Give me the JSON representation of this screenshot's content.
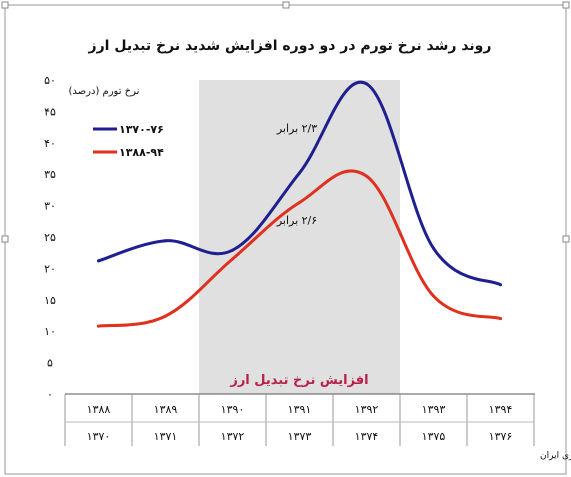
{
  "chart_data": {
    "type": "line",
    "title": "روند رشد نرخ تورم در دو دوره افزایش شدید نرخ تبدیل ارز",
    "ylabel": "نرخ تورم (درصد)",
    "xlabel": "",
    "ylim": [
      0,
      50
    ],
    "y_ticks": [
      "۰",
      "۵",
      "۱۰",
      "۱۵",
      "۲۰",
      "۲۵",
      "۳۰",
      "۳۵",
      "۴۰",
      "۴۵",
      "۵۰"
    ],
    "categories_top": [
      "۱۳۸۸",
      "۱۳۸۹",
      "۱۳۹۰",
      "۱۳۹۱",
      "۱۳۹۲",
      "۱۳۹۳",
      "۱۳۹۴"
    ],
    "categories_bottom": [
      "۱۳۷۰",
      "۱۳۷۱",
      "۱۳۷۲",
      "۱۳۷۳",
      "۱۳۷۴",
      "۱۳۷۵",
      "۱۳۷۶"
    ],
    "x": [
      0,
      1,
      2,
      3,
      4,
      5,
      6
    ],
    "series": [
      {
        "name": "۱۳۷۰-۷۶",
        "color": "#1f1f8f",
        "values": [
          21.2,
          24.4,
          22.9,
          35.2,
          49.4,
          23.2,
          17.4
        ]
      },
      {
        "name": "۱۳۸۸-۹۴",
        "color": "#e0301e",
        "values": [
          10.8,
          12.4,
          21.5,
          30.5,
          34.7,
          15.6,
          12.0
        ]
      }
    ],
    "shaded_region": {
      "from": 2,
      "to": 4,
      "label": "افزایش نرخ تبدیل ارز",
      "color": "#e0e0e0",
      "label_color": "#b8204a"
    },
    "annotations": [
      {
        "text": "۲/۳ برابر",
        "series": 0
      },
      {
        "text": "۲/۶ برابر",
        "series": 1
      }
    ],
    "legend_position": "top-left",
    "grid": false,
    "source": "تحلیل و استنتاج: احسان سلطانی بر اساس داده های بانک مرکزی ایران"
  }
}
